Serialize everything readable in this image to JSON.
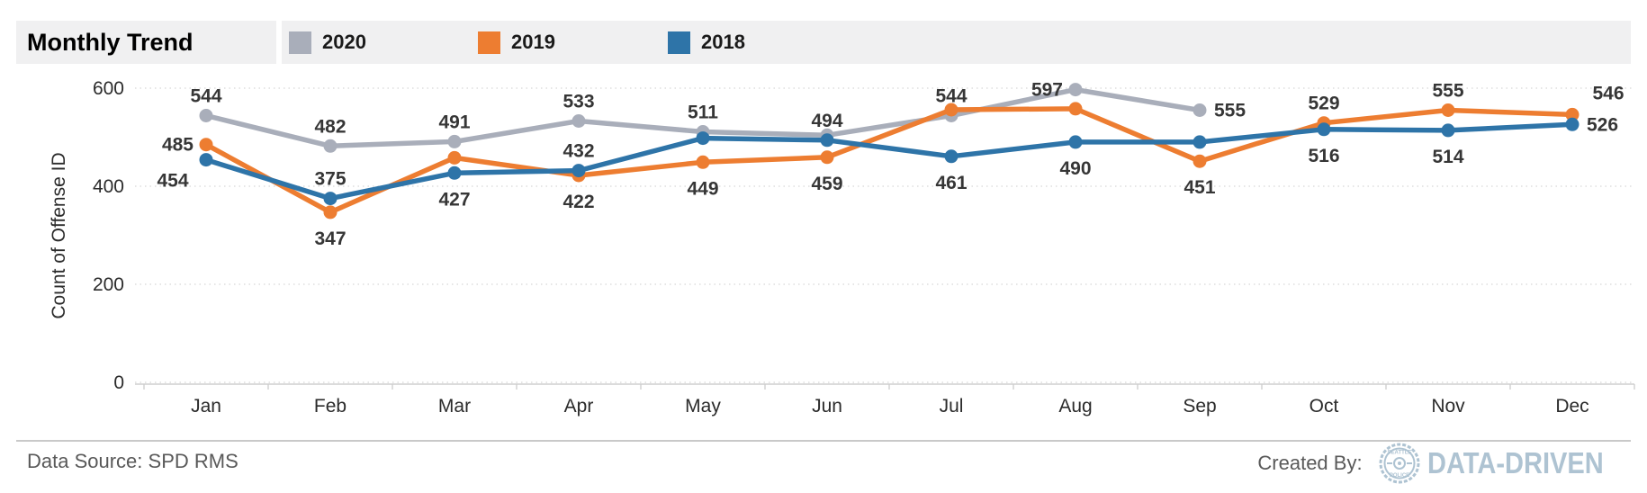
{
  "header": {
    "title": "Monthly Trend"
  },
  "legend": [
    {
      "label": "2020",
      "color": "#a9aeba"
    },
    {
      "label": "2019",
      "color": "#ed7d31"
    },
    {
      "label": "2018",
      "color": "#2e74a8"
    }
  ],
  "chart_data": {
    "type": "line",
    "title": "Monthly Trend",
    "xlabel": "",
    "ylabel": "Count of Offense ID",
    "categories": [
      "Jan",
      "Feb",
      "Mar",
      "Apr",
      "May",
      "Jun",
      "Jul",
      "Aug",
      "Sep",
      "Oct",
      "Nov",
      "Dec"
    ],
    "yticks": [
      0,
      200,
      400,
      600
    ],
    "ylim": [
      0,
      660
    ],
    "grid": "horizontal-dotted",
    "legend_position": "top",
    "series": [
      {
        "name": "2020",
        "color": "#a9aeba",
        "values": [
          544,
          482,
          491,
          533,
          511,
          504,
          544,
          597,
          555,
          null,
          null,
          null
        ],
        "labels": [
          "544",
          "482",
          "491",
          "533",
          "511",
          "",
          "544",
          "",
          "555",
          "",
          "",
          ""
        ],
        "label_pos": [
          "above",
          "above",
          "above",
          "above",
          "above",
          "none",
          "above",
          "left",
          "right",
          "none",
          "none",
          "none"
        ],
        "extra_labels": [
          {
            "index": 7,
            "text": "597",
            "pos": "left"
          }
        ],
        "note": "values for Jun (≈504) estimated from plot; series ends in Sep"
      },
      {
        "name": "2019",
        "color": "#ed7d31",
        "values": [
          485,
          347,
          458,
          422,
          449,
          459,
          556,
          558,
          451,
          529,
          555,
          546
        ],
        "labels": [
          "485",
          "347",
          "",
          "422",
          "449",
          "459",
          "",
          "",
          "451",
          "529",
          "555",
          "546"
        ],
        "label_pos": [
          "left",
          "below",
          "none",
          "below",
          "below",
          "below",
          "none",
          "none",
          "below",
          "above",
          "above",
          "above-right"
        ],
        "extra_labels": [],
        "note": "values for Mar (≈458), Jul (≈556), Aug (≈558) estimated from plot (labels hidden in source)"
      },
      {
        "name": "2018",
        "color": "#2e74a8",
        "values": [
          454,
          375,
          427,
          432,
          498,
          494,
          461,
          490,
          490,
          516,
          514,
          526
        ],
        "labels": [
          "454",
          "375",
          "427",
          "432",
          "",
          "494",
          "461",
          "490",
          "",
          "516",
          "514",
          "526"
        ],
        "label_pos": [
          "below-left",
          "above",
          "below",
          "above",
          "none",
          "above",
          "below",
          "below",
          "none",
          "below",
          "below",
          "right"
        ],
        "extra_labels": [],
        "note": "values for May (≈498), Sep (≈490) estimated from plot (labels hidden in source)"
      }
    ]
  },
  "footer": {
    "data_source": "Data Source: SPD RMS",
    "created_by": "Created By:",
    "brand": "DATA-DRIVEN",
    "brand_color": "#aec3d2",
    "badge_line1": "SEATTLE",
    "badge_line2": "POLICE"
  }
}
